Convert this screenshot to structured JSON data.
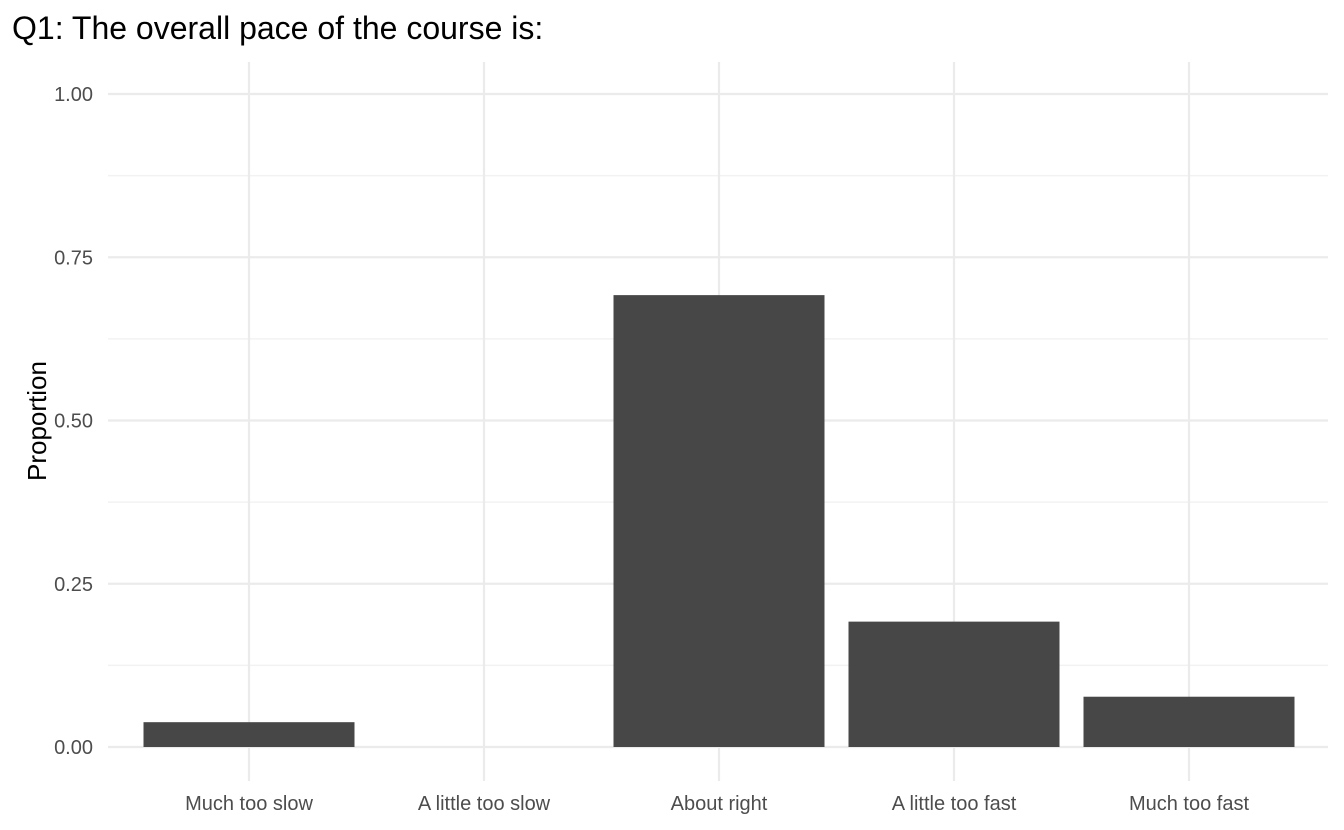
{
  "chart_data": {
    "type": "bar",
    "title": "Q1: The overall pace of the course is:",
    "xlabel": "",
    "ylabel": "Proportion",
    "categories": [
      "Much too slow",
      "A little too slow",
      "About right",
      "A little too fast",
      "Much too fast"
    ],
    "values": [
      0.038,
      0.0,
      0.692,
      0.192,
      0.077
    ],
    "ylim": [
      0,
      1.0
    ],
    "yticks": [
      0.0,
      0.25,
      0.5,
      0.75,
      1.0
    ],
    "ytick_labels": [
      "0.00",
      "0.25",
      "0.50",
      "0.75",
      "1.00"
    ],
    "grid": true,
    "legend": "none",
    "bar_color": "#474747"
  }
}
